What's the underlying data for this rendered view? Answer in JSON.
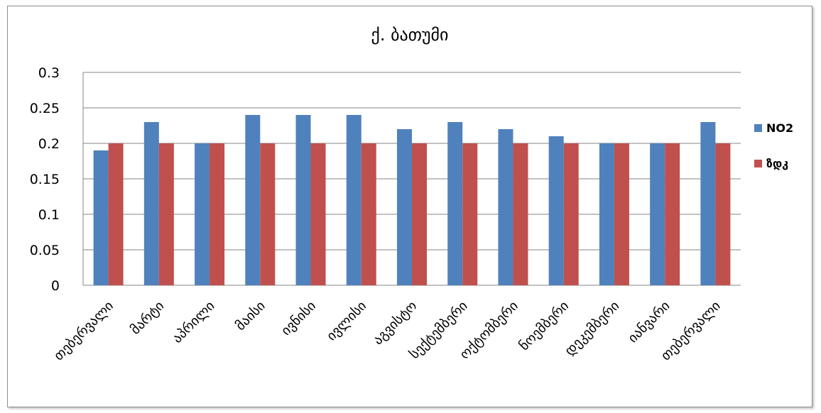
{
  "chart_data": {
    "type": "bar",
    "title": "ქ. ბათუმი",
    "xlabel": "",
    "ylabel": "",
    "categories": [
      "თებერვალი",
      "მარტი",
      "აპრილი",
      "მაისი",
      "ივნისი",
      "ივლისი",
      "აგვისტო",
      "სექტემბერი",
      "ოქტომბერი",
      "ნოემბერი",
      "დეკემბერი",
      "იანვარი",
      "თებერვალი"
    ],
    "series": [
      {
        "name": "NO2",
        "color": "#4f81bd",
        "values": [
          0.19,
          0.23,
          0.2,
          0.24,
          0.24,
          0.24,
          0.22,
          0.23,
          0.22,
          0.21,
          0.2,
          0.2,
          0.23
        ]
      },
      {
        "name": "ზდკ",
        "color": "#c0504d",
        "values": [
          0.2,
          0.2,
          0.2,
          0.2,
          0.2,
          0.2,
          0.2,
          0.2,
          0.2,
          0.2,
          0.2,
          0.2,
          0.2
        ]
      }
    ],
    "ylim": [
      0,
      0.3
    ],
    "yticks": [
      "0",
      "0.05",
      "0.1",
      "0.15",
      "0.2",
      "0.25",
      "0.3"
    ],
    "grid": true,
    "legend_position": "right"
  }
}
